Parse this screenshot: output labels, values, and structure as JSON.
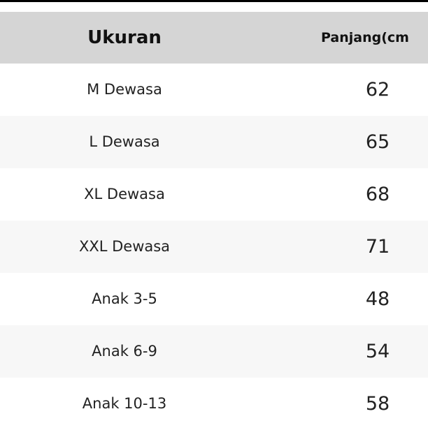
{
  "table": {
    "headers": [
      "Ukuran",
      "Panjang(cm"
    ],
    "rows": [
      [
        "M Dewasa",
        "62"
      ],
      [
        "L Dewasa",
        "65"
      ],
      [
        "XL Dewasa",
        "68"
      ],
      [
        "XXL Dewasa",
        "71"
      ],
      [
        "Anak 3-5",
        "48"
      ],
      [
        "Anak 6-9",
        "54"
      ],
      [
        "Anak 10-13",
        "58"
      ]
    ]
  },
  "colors": {
    "header_bg": "#d5d5d5",
    "alt_row_bg": "#f7f7f7"
  }
}
